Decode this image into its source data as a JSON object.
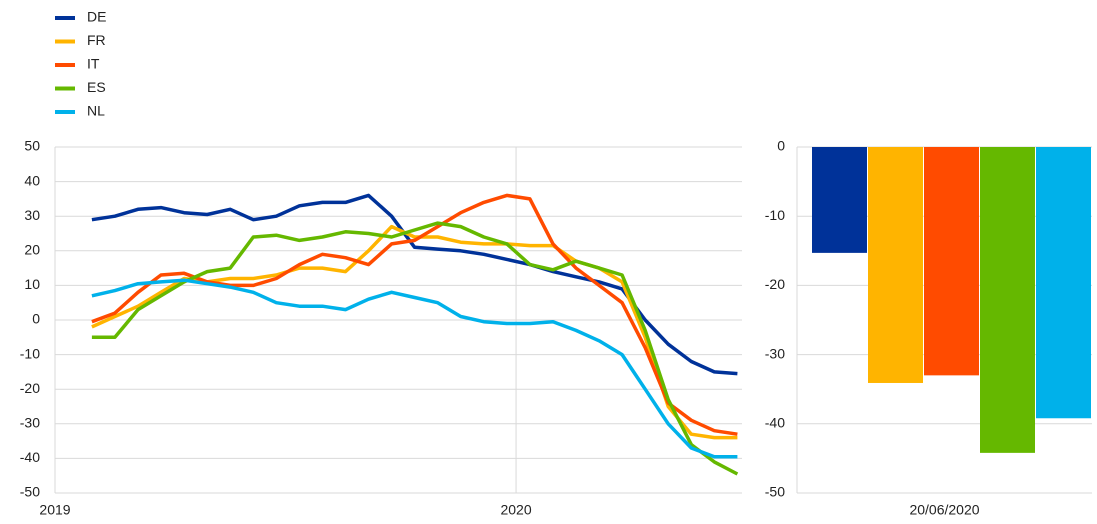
{
  "chart_data": [
    {
      "type": "line",
      "x": [
        2019.08,
        2019.13,
        2019.18,
        2019.23,
        2019.28,
        2019.33,
        2019.38,
        2019.43,
        2019.48,
        2019.53,
        2019.58,
        2019.63,
        2019.68,
        2019.73,
        2019.78,
        2019.83,
        2019.88,
        2019.93,
        2019.98,
        2020.03,
        2020.08,
        2020.13,
        2020.18,
        2020.23,
        2020.28,
        2020.33,
        2020.38,
        2020.43,
        2020.48
      ],
      "xlim": [
        2019,
        2020.49
      ],
      "xticks": [
        2019,
        2020
      ],
      "ylim": [
        -50,
        50
      ],
      "yticks": [
        50,
        40,
        30,
        20,
        10,
        0,
        -10,
        -20,
        -30,
        -40,
        -50
      ],
      "grid": true,
      "series": [
        {
          "name": "DE",
          "color": "#003299",
          "values": [
            29,
            30,
            32,
            32.5,
            31,
            30.5,
            32,
            29,
            30,
            33,
            34,
            34,
            36,
            30,
            21,
            20.5,
            20,
            19,
            17.5,
            16,
            14,
            12.5,
            11,
            9,
            0,
            -7,
            -12,
            -15,
            -15.5
          ]
        },
        {
          "name": "FR",
          "color": "#ffb400",
          "values": [
            -2,
            1,
            4,
            8,
            12,
            11,
            12,
            12,
            13,
            15,
            15,
            14,
            20,
            27,
            24,
            24,
            22.5,
            22,
            22,
            21.5,
            21.5,
            17,
            15,
            11,
            -5,
            -25,
            -33,
            -34,
            -34
          ]
        },
        {
          "name": "IT",
          "color": "#ff4b00",
          "values": [
            -0.5,
            2,
            8,
            13,
            13.5,
            11,
            10,
            10,
            12,
            16,
            19,
            18,
            16,
            22,
            23,
            27,
            31,
            34,
            36,
            35,
            22,
            15,
            10,
            5,
            -8,
            -24,
            -29,
            -32,
            -33
          ]
        },
        {
          "name": "ES",
          "color": "#65b800",
          "values": [
            -5,
            -5,
            3,
            7,
            11,
            14,
            15,
            24,
            24.5,
            23,
            24,
            25.5,
            25,
            24,
            26,
            28,
            27,
            24,
            22,
            16,
            14.5,
            17,
            15,
            13,
            -3,
            -23,
            -36,
            -41,
            -44.5
          ]
        },
        {
          "name": "NL",
          "color": "#00b1ea",
          "values": [
            7,
            8.5,
            10.5,
            11,
            11.5,
            10.5,
            9.5,
            8,
            5,
            4,
            4,
            3,
            6,
            8,
            6.5,
            5,
            1,
            -0.5,
            -1,
            -1,
            -0.5,
            -3,
            -6,
            -10,
            -20,
            -30,
            -37,
            -39.5,
            -39.5
          ]
        }
      ]
    },
    {
      "type": "bar",
      "xlabel": "20/06/2020",
      "values": [
        -15.3,
        -34.1,
        -33,
        -44.2,
        -39.2
      ],
      "colors": [
        "#003299",
        "#ffb400",
        "#ff4b00",
        "#65b800",
        "#00b1ea"
      ],
      "ylim": [
        -50,
        0
      ],
      "yticks": [
        0,
        -10,
        -20,
        -30,
        -40,
        -50
      ],
      "grid": true
    }
  ]
}
